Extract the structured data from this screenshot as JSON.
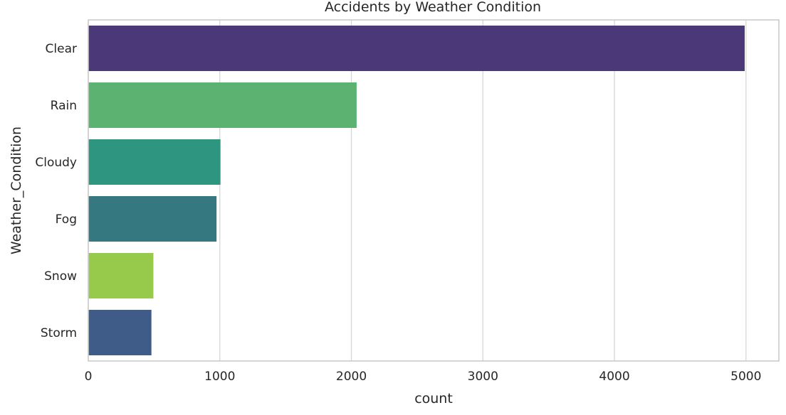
{
  "chart_data": {
    "type": "bar",
    "orientation": "horizontal",
    "title": "Accidents by Weather Condition",
    "xlabel": "count",
    "ylabel": "Weather_Condition",
    "xlim": [
      0,
      5250
    ],
    "xticks": [
      0,
      1000,
      2000,
      3000,
      4000,
      5000
    ],
    "grid": "vertical",
    "categories": [
      "Clear",
      "Rain",
      "Cloudy",
      "Fog",
      "Snow",
      "Storm"
    ],
    "values": [
      4990,
      2040,
      1005,
      975,
      495,
      480
    ],
    "colors": [
      "#4b3878",
      "#5bb271",
      "#2e9580",
      "#35787f",
      "#97c94b",
      "#3f5c88"
    ]
  }
}
